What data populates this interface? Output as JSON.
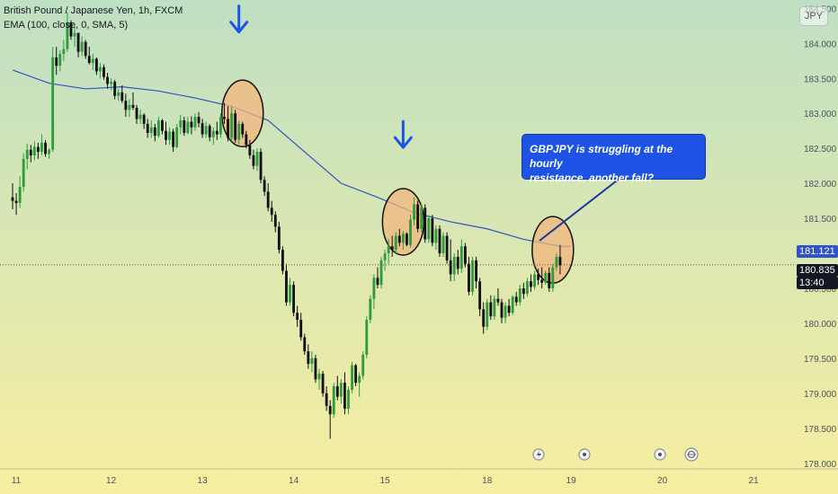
{
  "header": {
    "title": "British Pound / Japanese Yen, 1h, FXCM",
    "indicator": "EMA (100, close, 0, SMA, 5)"
  },
  "currency_button": "JPY",
  "callout": {
    "line1": "GBPJPY is struggling at the hourly",
    "line2": "resistance, another fall?"
  },
  "price_tags": {
    "ema": "181.121",
    "current": "180.835",
    "countdown": "13:40",
    "partial": "180.500"
  },
  "colors": {
    "bg_top": "#bfe0c3",
    "bg_bottom": "#f7eea0",
    "up": "#2e9c3d",
    "down": "#111111",
    "ema_line": "#2f54c6",
    "circle_fill": "#f2b57e",
    "arrow": "#1e53e5",
    "callout_bg": "#1e53e5"
  },
  "icons": [
    "flash-icon",
    "event-dot-icon",
    "event-dot-icon",
    "economic-calendar-icon"
  ],
  "chart_data": {
    "type": "candlestick",
    "title": "British Pound / Japanese Yen, 1h, FXCM",
    "y_axis": {
      "range": [
        177.92,
        184.62
      ],
      "ticks": [
        "184.500",
        "184.000",
        "183.500",
        "183.000",
        "182.500",
        "182.000",
        "181.500",
        "181.000",
        "180.500",
        "180.000",
        "179.500",
        "179.000",
        "178.500",
        "178.000"
      ]
    },
    "x_axis": {
      "range": [
        0,
        218
      ],
      "ticks": [
        {
          "label": "11",
          "x": 1
        },
        {
          "label": "12",
          "x": 27
        },
        {
          "label": "13",
          "x": 52
        },
        {
          "label": "14",
          "x": 77
        },
        {
          "label": "15",
          "x": 102
        },
        {
          "label": "18",
          "x": 130
        },
        {
          "label": "19",
          "x": 153
        },
        {
          "label": "20",
          "x": 178
        },
        {
          "label": "21",
          "x": 203
        }
      ]
    },
    "candles": [
      [
        181.8,
        182.0,
        181.63,
        181.75
      ],
      [
        181.75,
        181.86,
        181.55,
        181.72
      ],
      [
        181.72,
        182.1,
        181.65,
        181.95
      ],
      [
        181.95,
        182.43,
        181.88,
        182.35
      ],
      [
        182.35,
        182.57,
        182.2,
        182.48
      ],
      [
        182.48,
        182.55,
        182.3,
        182.4
      ],
      [
        182.4,
        182.6,
        182.33,
        182.52
      ],
      [
        182.52,
        182.58,
        182.35,
        182.45
      ],
      [
        182.45,
        182.7,
        182.4,
        182.58
      ],
      [
        182.58,
        182.62,
        182.38,
        182.42
      ],
      [
        182.42,
        182.5,
        182.35,
        182.48
      ],
      [
        182.48,
        183.95,
        182.45,
        183.8
      ],
      [
        183.8,
        183.95,
        183.55,
        183.68
      ],
      [
        183.68,
        183.9,
        183.6,
        183.85
      ],
      [
        183.85,
        184.05,
        183.75,
        183.92
      ],
      [
        183.92,
        184.45,
        183.88,
        184.3
      ],
      [
        184.3,
        184.33,
        184.05,
        184.1
      ],
      [
        184.1,
        184.25,
        183.95,
        184.15
      ],
      [
        184.15,
        184.15,
        183.8,
        183.88
      ],
      [
        183.88,
        184.1,
        183.82,
        184.02
      ],
      [
        184.02,
        184.05,
        183.78,
        183.82
      ],
      [
        183.82,
        183.95,
        183.7,
        183.72
      ],
      [
        183.72,
        183.85,
        183.62,
        183.78
      ],
      [
        183.78,
        183.8,
        183.55,
        183.6
      ],
      [
        183.6,
        183.72,
        183.5,
        183.66
      ],
      [
        183.66,
        183.7,
        183.48,
        183.52
      ],
      [
        183.52,
        183.58,
        183.35,
        183.42
      ],
      [
        183.42,
        183.5,
        183.33,
        183.45
      ],
      [
        183.45,
        183.48,
        183.2,
        183.25
      ],
      [
        183.25,
        183.35,
        183.18,
        183.3
      ],
      [
        183.3,
        183.4,
        183.15,
        183.18
      ],
      [
        183.18,
        183.28,
        182.95,
        183.05
      ],
      [
        183.05,
        183.2,
        182.95,
        183.12
      ],
      [
        183.12,
        183.3,
        183.05,
        183.08
      ],
      [
        183.08,
        183.12,
        182.85,
        182.92
      ],
      [
        182.92,
        183.05,
        182.85,
        182.98
      ],
      [
        182.98,
        183.0,
        182.78,
        182.85
      ],
      [
        182.85,
        182.92,
        182.65,
        182.72
      ],
      [
        182.72,
        182.9,
        182.65,
        182.8
      ],
      [
        182.8,
        182.85,
        182.6,
        182.68
      ],
      [
        182.68,
        182.95,
        182.65,
        182.9
      ],
      [
        182.9,
        182.92,
        182.7,
        182.75
      ],
      [
        182.75,
        182.88,
        182.55,
        182.62
      ],
      [
        182.62,
        182.8,
        182.55,
        182.74
      ],
      [
        182.74,
        182.78,
        182.45,
        182.52
      ],
      [
        182.52,
        182.85,
        182.5,
        182.8
      ],
      [
        182.8,
        182.98,
        182.7,
        182.9
      ],
      [
        182.9,
        182.95,
        182.68,
        182.72
      ],
      [
        182.72,
        182.95,
        182.7,
        182.88
      ],
      [
        182.88,
        182.96,
        182.7,
        182.8
      ],
      [
        182.8,
        183.0,
        182.75,
        182.95
      ],
      [
        182.95,
        183.02,
        182.8,
        182.86
      ],
      [
        182.86,
        182.92,
        182.65,
        182.7
      ],
      [
        182.7,
        182.88,
        182.65,
        182.82
      ],
      [
        182.82,
        182.85,
        182.6,
        182.66
      ],
      [
        182.66,
        182.8,
        182.55,
        182.75
      ],
      [
        182.75,
        182.88,
        182.62,
        182.7
      ],
      [
        182.7,
        183.0,
        182.65,
        182.95
      ],
      [
        182.95,
        183.15,
        182.85,
        182.92
      ],
      [
        182.92,
        183.1,
        182.6,
        182.65
      ],
      [
        182.65,
        183.1,
        182.6,
        183.0
      ],
      [
        183.0,
        183.05,
        182.58,
        182.62
      ],
      [
        182.62,
        182.9,
        182.55,
        182.85
      ],
      [
        182.85,
        182.88,
        182.65,
        182.7
      ],
      [
        182.7,
        182.75,
        182.5,
        182.55
      ],
      [
        182.55,
        182.62,
        182.35,
        182.4
      ],
      [
        182.4,
        182.48,
        182.2,
        182.25
      ],
      [
        182.25,
        182.5,
        182.18,
        182.45
      ],
      [
        182.45,
        182.5,
        182.0,
        182.05
      ],
      [
        182.05,
        182.1,
        181.82,
        181.88
      ],
      [
        181.88,
        182.0,
        181.6,
        181.65
      ],
      [
        181.65,
        181.75,
        181.45,
        181.55
      ],
      [
        181.55,
        181.6,
        181.3,
        181.38
      ],
      [
        181.38,
        181.45,
        181.0,
        181.05
      ],
      [
        181.05,
        181.1,
        180.7,
        180.75
      ],
      [
        180.75,
        180.85,
        180.25,
        180.3
      ],
      [
        180.3,
        180.65,
        180.25,
        180.55
      ],
      [
        180.55,
        180.6,
        180.1,
        180.15
      ],
      [
        180.15,
        180.25,
        179.95,
        180.05
      ],
      [
        180.05,
        180.15,
        179.75,
        179.8
      ],
      [
        179.8,
        179.85,
        179.55,
        179.6
      ],
      [
        179.6,
        179.7,
        179.35,
        179.42
      ],
      [
        179.42,
        179.6,
        179.3,
        179.5
      ],
      [
        179.5,
        179.55,
        179.15,
        179.2
      ],
      [
        179.2,
        179.35,
        179.05,
        179.28
      ],
      [
        179.28,
        179.32,
        178.95,
        179.0
      ],
      [
        179.0,
        179.1,
        178.75,
        178.82
      ],
      [
        178.82,
        178.9,
        178.35,
        178.7
      ],
      [
        178.7,
        179.15,
        178.65,
        179.1
      ],
      [
        179.1,
        179.25,
        178.9,
        178.95
      ],
      [
        178.95,
        179.2,
        178.85,
        179.15
      ],
      [
        179.15,
        179.3,
        178.7,
        178.78
      ],
      [
        178.78,
        179.1,
        178.7,
        179.05
      ],
      [
        179.05,
        179.45,
        179.0,
        179.4
      ],
      [
        179.4,
        179.42,
        179.1,
        179.15
      ],
      [
        179.15,
        179.3,
        178.95,
        179.25
      ],
      [
        179.25,
        179.6,
        179.2,
        179.55
      ],
      [
        179.55,
        180.1,
        179.5,
        180.05
      ],
      [
        180.05,
        180.4,
        180.0,
        180.35
      ],
      [
        180.35,
        180.7,
        180.2,
        180.65
      ],
      [
        180.65,
        180.8,
        180.5,
        180.55
      ],
      [
        180.55,
        180.95,
        180.5,
        180.9
      ],
      [
        180.9,
        181.05,
        180.75,
        181.0
      ],
      [
        181.0,
        181.2,
        180.85,
        181.1
      ],
      [
        181.1,
        181.25,
        180.95,
        181.05
      ],
      [
        181.05,
        181.3,
        181.0,
        181.25
      ],
      [
        181.25,
        181.35,
        181.1,
        181.15
      ],
      [
        181.15,
        181.32,
        181.05,
        181.28
      ],
      [
        181.28,
        181.3,
        181.1,
        181.12
      ],
      [
        181.12,
        181.55,
        181.08,
        181.48
      ],
      [
        181.48,
        181.8,
        181.4,
        181.7
      ],
      [
        181.7,
        181.75,
        181.3,
        181.35
      ],
      [
        181.35,
        181.7,
        181.3,
        181.65
      ],
      [
        181.65,
        181.7,
        181.15,
        181.2
      ],
      [
        181.2,
        181.55,
        181.15,
        181.5
      ],
      [
        181.5,
        181.55,
        181.1,
        181.15
      ],
      [
        181.15,
        181.4,
        181.05,
        181.35
      ],
      [
        181.35,
        181.4,
        180.95,
        181.0
      ],
      [
        181.0,
        181.3,
        180.95,
        181.25
      ],
      [
        181.25,
        181.3,
        180.85,
        180.9
      ],
      [
        180.9,
        181.2,
        180.6,
        180.7
      ],
      [
        180.7,
        181.0,
        180.6,
        180.95
      ],
      [
        180.95,
        181.05,
        180.7,
        180.78
      ],
      [
        180.78,
        181.2,
        180.72,
        181.1
      ],
      [
        181.1,
        181.15,
        180.8,
        180.85
      ],
      [
        180.85,
        180.95,
        180.4,
        180.45
      ],
      [
        180.45,
        180.95,
        180.4,
        180.9
      ],
      [
        180.9,
        180.95,
        180.5,
        180.6
      ],
      [
        180.6,
        180.65,
        180.1,
        180.2
      ],
      [
        180.2,
        180.3,
        179.85,
        179.95
      ],
      [
        179.95,
        180.35,
        179.9,
        180.3
      ],
      [
        180.3,
        180.4,
        180.05,
        180.1
      ],
      [
        180.1,
        180.4,
        180.05,
        180.35
      ],
      [
        180.35,
        180.5,
        180.25,
        180.3
      ],
      [
        180.3,
        180.35,
        180.0,
        180.08
      ],
      [
        180.08,
        180.3,
        180.0,
        180.25
      ],
      [
        180.25,
        180.35,
        180.1,
        180.15
      ],
      [
        180.15,
        180.4,
        180.12,
        180.38
      ],
      [
        180.38,
        180.45,
        180.25,
        180.3
      ],
      [
        180.3,
        180.55,
        180.25,
        180.5
      ],
      [
        180.5,
        180.58,
        180.35,
        180.42
      ],
      [
        180.42,
        180.65,
        180.38,
        180.6
      ],
      [
        180.6,
        180.7,
        180.45,
        180.52
      ],
      [
        180.52,
        180.75,
        180.48,
        180.7
      ],
      [
        180.7,
        180.78,
        180.55,
        180.62
      ],
      [
        180.62,
        180.8,
        180.5,
        180.58
      ],
      [
        180.58,
        180.75,
        180.55,
        180.72
      ],
      [
        180.72,
        180.8,
        180.45,
        180.5
      ],
      [
        180.5,
        180.85,
        180.45,
        180.8
      ],
      [
        180.8,
        181.0,
        180.75,
        180.95
      ],
      [
        180.95,
        181.12,
        180.7,
        180.83
      ]
    ],
    "ema": [
      [
        0,
        183.62
      ],
      [
        10,
        183.43
      ],
      [
        20,
        183.35
      ],
      [
        30,
        183.38
      ],
      [
        40,
        183.32
      ],
      [
        50,
        183.22
      ],
      [
        60,
        183.1
      ],
      [
        70,
        182.9
      ],
      [
        80,
        182.45
      ],
      [
        90,
        182.0
      ],
      [
        100,
        181.8
      ],
      [
        110,
        181.58
      ],
      [
        120,
        181.45
      ],
      [
        130,
        181.35
      ],
      [
        140,
        181.2
      ],
      [
        150,
        181.1
      ],
      [
        153,
        181.1
      ]
    ],
    "annotations": [
      {
        "type": "circle",
        "x": 63,
        "y": 183.0
      },
      {
        "type": "circle",
        "x": 107,
        "y": 181.45
      },
      {
        "type": "circle",
        "x": 148,
        "y": 181.05
      },
      {
        "type": "arrow-down",
        "x": 62,
        "y": 184.15
      },
      {
        "type": "arrow-down",
        "x": 107,
        "y": 182.5
      }
    ],
    "current_price": 180.835
  }
}
